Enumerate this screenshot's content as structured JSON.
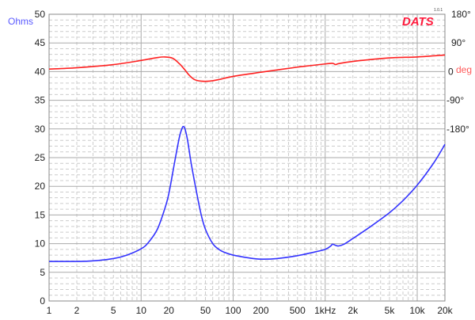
{
  "chart_data": {
    "type": "line",
    "logo": "DATS",
    "version": "1.0.1",
    "x_scale": "log",
    "xlim": [
      1,
      20000
    ],
    "x_ticks": [
      1,
      2,
      5,
      10,
      20,
      50,
      100,
      200,
      500,
      1000,
      2000,
      5000,
      10000,
      20000
    ],
    "x_tick_labels": [
      "1",
      "2",
      "5",
      "10",
      "20",
      "50",
      "100",
      "200",
      "500",
      "1kHz",
      "2k",
      "5k",
      "10k",
      "20k"
    ],
    "ylabel": "Ohms",
    "ylim": [
      0,
      50
    ],
    "y_ticks": [
      0,
      5,
      10,
      15,
      20,
      25,
      30,
      35,
      40,
      45,
      50
    ],
    "y_tick_labels": [
      "0",
      "5",
      "10",
      "15",
      "20",
      "25",
      "30",
      "35",
      "40",
      "45",
      "50"
    ],
    "y2label": "deg",
    "y2lim": [
      -180,
      180
    ],
    "y2_range_on_left_axis": [
      30,
      50
    ],
    "y2_ticks": [
      180,
      90,
      0,
      -90,
      -180
    ],
    "y2_tick_labels": [
      "180°",
      "90°",
      "0",
      "-90°",
      "-180°"
    ],
    "grid": true,
    "colors": {
      "impedance": "#3333ff",
      "phase": "#ff2020",
      "grid_major": "#aaaaaa",
      "grid_minor": "#cccccc",
      "logo": "#ff1a3c"
    },
    "series": [
      {
        "axis": "left",
        "x": [
          1,
          2,
          3,
          5,
          7,
          10,
          12,
          15,
          18,
          20,
          23,
          26,
          28,
          29,
          30,
          32,
          35,
          40,
          45,
          50,
          60,
          70,
          80,
          100,
          150,
          200,
          300,
          500,
          700,
          1000,
          1150,
          1200,
          1300,
          1400,
          1600,
          2000,
          3000,
          5000,
          7000,
          10000,
          15000,
          20000
        ],
        "y": [
          6.9,
          6.9,
          7.0,
          7.4,
          8.0,
          9.1,
          10.2,
          12.5,
          16,
          18.7,
          24,
          28.5,
          30.2,
          30.4,
          30.0,
          28,
          24,
          19,
          15,
          12.5,
          10,
          9,
          8.5,
          8.0,
          7.5,
          7.3,
          7.4,
          7.9,
          8.4,
          9.0,
          9.6,
          9.9,
          9.7,
          9.6,
          9.9,
          10.9,
          12.8,
          15.4,
          17.5,
          20.2,
          24,
          27.3
        ]
      },
      {
        "axis": "right",
        "x": [
          1,
          2,
          5,
          10,
          15,
          18,
          22,
          26,
          30,
          33,
          38,
          45,
          55,
          70,
          100,
          200,
          500,
          1000,
          1200,
          1300,
          1400,
          2000,
          5000,
          10000,
          20000
        ],
        "y": [
          8,
          12,
          22,
          35,
          44,
          46,
          42,
          25,
          5,
          -10,
          -25,
          -30,
          -30,
          -25,
          -15,
          -2,
          14,
          24,
          26,
          22,
          25,
          32,
          43,
          46,
          52
        ]
      }
    ]
  }
}
